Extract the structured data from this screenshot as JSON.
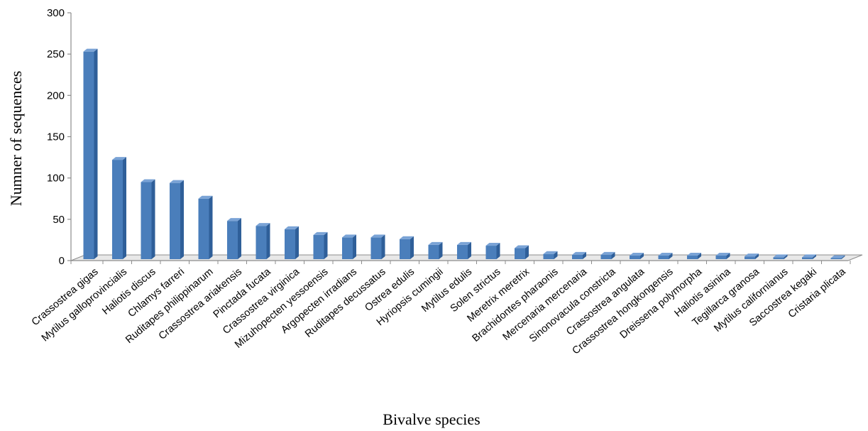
{
  "chart_data": {
    "type": "bar",
    "style": "3d-column",
    "xlabel": "Bivalve species",
    "ylabel": "Numner of  sequences",
    "ylim": [
      0,
      300
    ],
    "yticks": [
      0,
      50,
      100,
      150,
      200,
      250,
      300
    ],
    "grid": false,
    "bar_color": "#4a7ebb",
    "categories": [
      "Crassostrea gigas",
      "Mytilus galloprovincialis",
      "Haliotis discus",
      "Chlamys farreri",
      "Ruditapes philippinarum",
      "Crassostrea ariakensis",
      "Pinctada fucata",
      "Crassostrea virginica",
      "Mizuhopecten yessoensis",
      "Argopecten irradians",
      "Ruditapes decussatus",
      "Ostrea edulis",
      "Hyriopsis cumingii",
      "Mytilus edulis",
      "Solen strictus",
      "Meretrix meretrix",
      "Brachidontes pharaonis",
      "Mercenaria mercenaria",
      "Sinonovacula constricta",
      "Crassostrea angulata",
      "Crassostrea hongkongensis",
      "Dreissena polymorpha",
      "Haliotis asinina",
      "Tegillarca granosa",
      "Mytilus californianus",
      "Saccostrea kegaki",
      "Cristaria plicata"
    ],
    "values": [
      253,
      122,
      95,
      94,
      75,
      48,
      42,
      38,
      31,
      28,
      28,
      26,
      19,
      19,
      18,
      15,
      8,
      7,
      7,
      6,
      6,
      6,
      6,
      5,
      4,
      4,
      3
    ]
  }
}
